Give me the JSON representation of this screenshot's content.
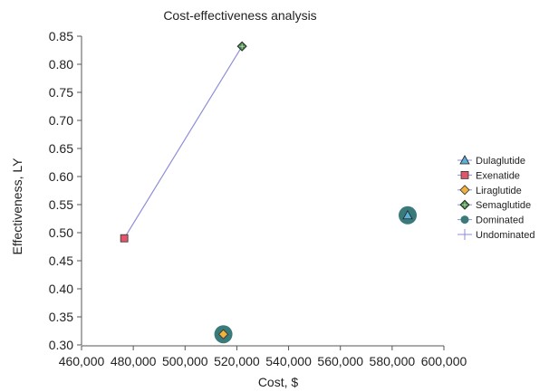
{
  "chart_data": {
    "type": "scatter",
    "title": "Cost-effectiveness analysis",
    "xlabel": "Cost, $",
    "ylabel": "Effectiveness, LY",
    "xlim": [
      460000,
      600000
    ],
    "ylim": [
      0.3,
      0.85
    ],
    "x_ticks": [
      460000,
      480000,
      500000,
      520000,
      540000,
      560000,
      580000,
      600000
    ],
    "x_tick_labels": [
      "460,000",
      "480,000",
      "500,000",
      "520,000",
      "540,000",
      "560,000",
      "580,000",
      "600,000"
    ],
    "y_ticks": [
      0.3,
      0.35,
      0.4,
      0.45,
      0.5,
      0.55,
      0.6,
      0.65,
      0.7,
      0.75,
      0.8,
      0.85
    ],
    "y_tick_labels": [
      "0.30",
      "0.35",
      "0.40",
      "0.45",
      "0.50",
      "0.55",
      "0.60",
      "0.65",
      "0.70",
      "0.75",
      "0.80",
      "0.85"
    ],
    "grid": false,
    "legend_position": "right",
    "series": [
      {
        "name": "Dulaglutide",
        "marker": "triangle",
        "color": "#5bb0d8",
        "x": 586000,
        "y": 0.531,
        "dominated": true
      },
      {
        "name": "Exenatide",
        "marker": "square",
        "color": "#e0566a",
        "x": 476500,
        "y": 0.49,
        "dominated": false
      },
      {
        "name": "Liraglutide",
        "marker": "diamond",
        "color": "#f0b23a",
        "x": 514800,
        "y": 0.319,
        "dominated": true
      },
      {
        "name": "Semaglutide",
        "marker": "diamond-cross",
        "color": "#3e7f3e",
        "x": 522000,
        "y": 0.832,
        "dominated": false
      }
    ],
    "dominated_legend": {
      "name": "Dominated",
      "color": "#3a7a7a"
    },
    "undominated_legend": {
      "name": "Undominated",
      "color": "#8e8ed8"
    },
    "frontier": [
      {
        "x": 476500,
        "y": 0.49
      },
      {
        "x": 522000,
        "y": 0.832
      }
    ]
  }
}
